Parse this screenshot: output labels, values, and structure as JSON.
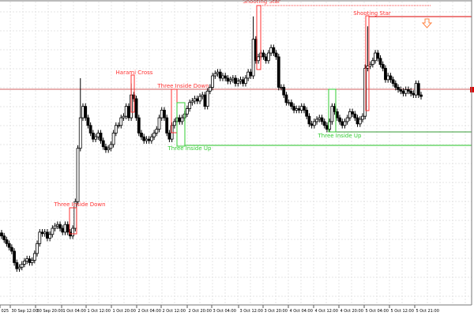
{
  "chart_data": {
    "type": "candlestick",
    "title": "",
    "timeframe_note": "",
    "grid": true,
    "colors": {
      "bull_body": "#ffffff",
      "bear_body": "#000000",
      "outline": "#000000",
      "bearish_pattern": "#ff3333",
      "bullish_pattern": "#33cc33",
      "bid_line": "#d06060",
      "arrow": "#ff8040"
    },
    "x_tick_labels": [
      "025",
      "30 Sep 12:00",
      "30 Sep 20:00",
      "1 Oct 04:00",
      "1 Oct 12:00",
      "1 Oct 20:00",
      "2 Oct 04:00",
      "2 Oct 12:00",
      "2 Oct 20:00",
      "3 Oct 04:00",
      "3 Oct 12:00",
      "3 Oct 20:00",
      "4 Oct 04:00",
      "4 Oct 12:00",
      "4 Oct 20:00",
      "5 Oct 04:00",
      "5 Oct 12:00",
      "5 Oct 21:00"
    ],
    "price_range": [
      0,
      400
    ],
    "closes": [
      105,
      100,
      95,
      90,
      85,
      70,
      62,
      64,
      68,
      72,
      75,
      70,
      73,
      82,
      95,
      110,
      108,
      110,
      102,
      107,
      115,
      118,
      120,
      115,
      110,
      120,
      110,
      105,
      115,
      150,
      220,
      [
        260,
        312
      ],
      275,
      260,
      250,
      240,
      232,
      235,
      240,
      230,
      222,
      218,
      220,
      225,
      240,
      250,
      250,
      260,
      262,
      275,
      260,
      [
        290,
        305
      ],
      285,
      260,
      240,
      235,
      230,
      232,
      230,
      235,
      240,
      245,
      260,
      270,
      260,
      240,
      232,
      250,
      255,
      260,
      255,
      260,
      265,
      272,
      280,
      282,
      285,
      282,
      288,
      290,
      275,
      295,
      300,
      315,
      318,
      320,
      312,
      315,
      312,
      308,
      310,
      312,
      305,
      308,
      310,
      305,
      312,
      320,
      315,
      [
        363,
        393
      ],
      335,
      340,
      345,
      340,
      335,
      345,
      352,
      345,
      340,
      300,
      300,
      290,
      280,
      280,
      275,
      270,
      272,
      270,
      275,
      270,
      262,
      252,
      250,
      255,
      258,
      260,
      255,
      250,
      245,
      255,
      275,
      268,
      260,
      255,
      250,
      255,
      260,
      268,
      265,
      260,
      252,
      258,
      262,
      [
        325,
        330
      ],
      [
        328,
        380
      ],
      330,
      335,
      345,
      338,
      330,
      325,
      310,
      315,
      310,
      305,
      300,
      297,
      295,
      292,
      297,
      295,
      292,
      290,
      305,
      290,
      288
    ],
    "patterns": [
      {
        "label": "Three Inside Down",
        "type": "bearish"
      },
      {
        "label": "Harami Cross",
        "type": "bearish"
      },
      {
        "label": "Three Inside Down",
        "type": "bearish"
      },
      {
        "label": "Three Inside Up",
        "type": "bullish"
      },
      {
        "label": "Shooting Star",
        "type": "bearish"
      },
      {
        "label": "Three Inside Up",
        "type": "bullish"
      },
      {
        "label": "Shooting Star",
        "type": "bearish"
      }
    ],
    "signal_arrow": "down-arrow-icon"
  }
}
